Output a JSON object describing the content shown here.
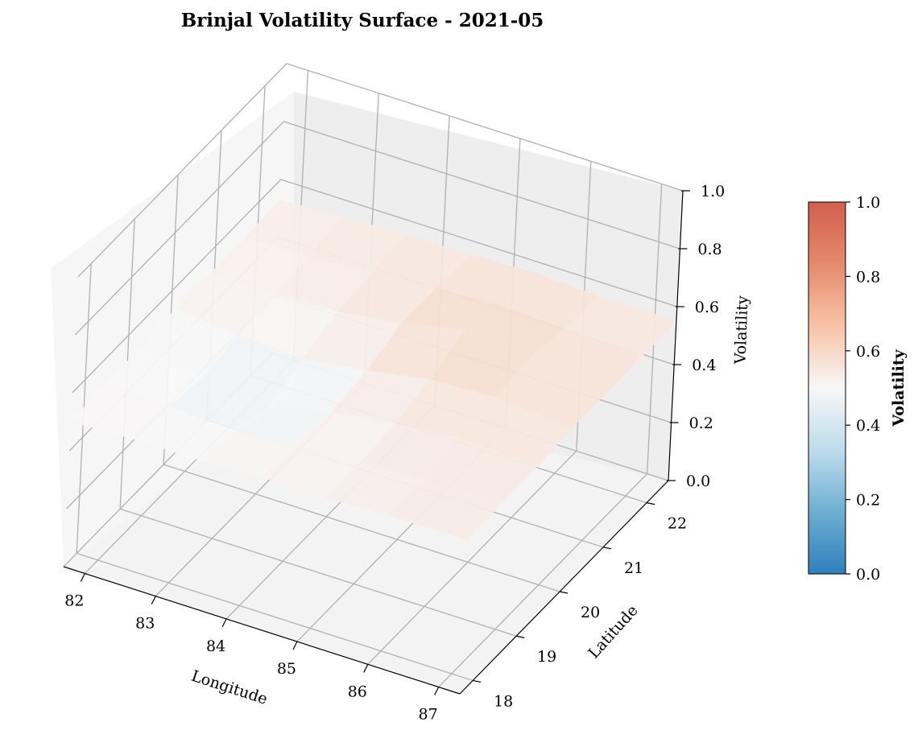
{
  "chart_data": {
    "type": "surface3d",
    "title": "Brinjal Volatility Surface - 2021-05",
    "xlabel": "Longitude",
    "ylabel": "Latitude",
    "zlabel": "Volatility",
    "x_ticks": [
      "82",
      "83",
      "84",
      "85",
      "86",
      "87"
    ],
    "y_ticks": [
      "18",
      "19",
      "20",
      "21",
      "22"
    ],
    "z_ticks": [
      "0.0",
      "0.2",
      "0.4",
      "0.6",
      "0.8",
      "1.0"
    ],
    "xlim": [
      81.7,
      87.3
    ],
    "ylim": [
      17.7,
      22.5
    ],
    "zlim": [
      0,
      1
    ],
    "x": [
      81.7,
      82.6,
      83.5,
      84.4,
      85.3,
      86.2,
      87.3
    ],
    "y": [
      17.7,
      18.5,
      19.3,
      20.1,
      20.9,
      21.7,
      22.5
    ],
    "z": [
      [
        0.5,
        0.51,
        0.51,
        0.52,
        0.52,
        0.53,
        0.53
      ],
      [
        0.51,
        0.5,
        0.49,
        0.51,
        0.52,
        0.53,
        0.54
      ],
      [
        0.51,
        0.48,
        0.44,
        0.5,
        0.53,
        0.55,
        0.54
      ],
      [
        0.52,
        0.5,
        0.49,
        0.52,
        0.56,
        0.57,
        0.55
      ],
      [
        0.52,
        0.52,
        0.53,
        0.56,
        0.61,
        0.58,
        0.55
      ],
      [
        0.52,
        0.53,
        0.54,
        0.56,
        0.57,
        0.56,
        0.55
      ],
      [
        0.53,
        0.54,
        0.55,
        0.55,
        0.56,
        0.55,
        0.55
      ]
    ],
    "colorbar": {
      "label": "Volatility",
      "ticks": [
        "0.0",
        "0.2",
        "0.4",
        "0.6",
        "0.8",
        "1.0"
      ],
      "range": [
        0,
        1
      ],
      "colormap": "RdBu_r",
      "colors": [
        "#2f7fbc",
        "#6eaed2",
        "#bedceb",
        "#f7f7f7",
        "#f8c3a7",
        "#e48a6c",
        "#d15f4f"
      ]
    },
    "pane_color": "#f2f2f2",
    "grid": true
  }
}
